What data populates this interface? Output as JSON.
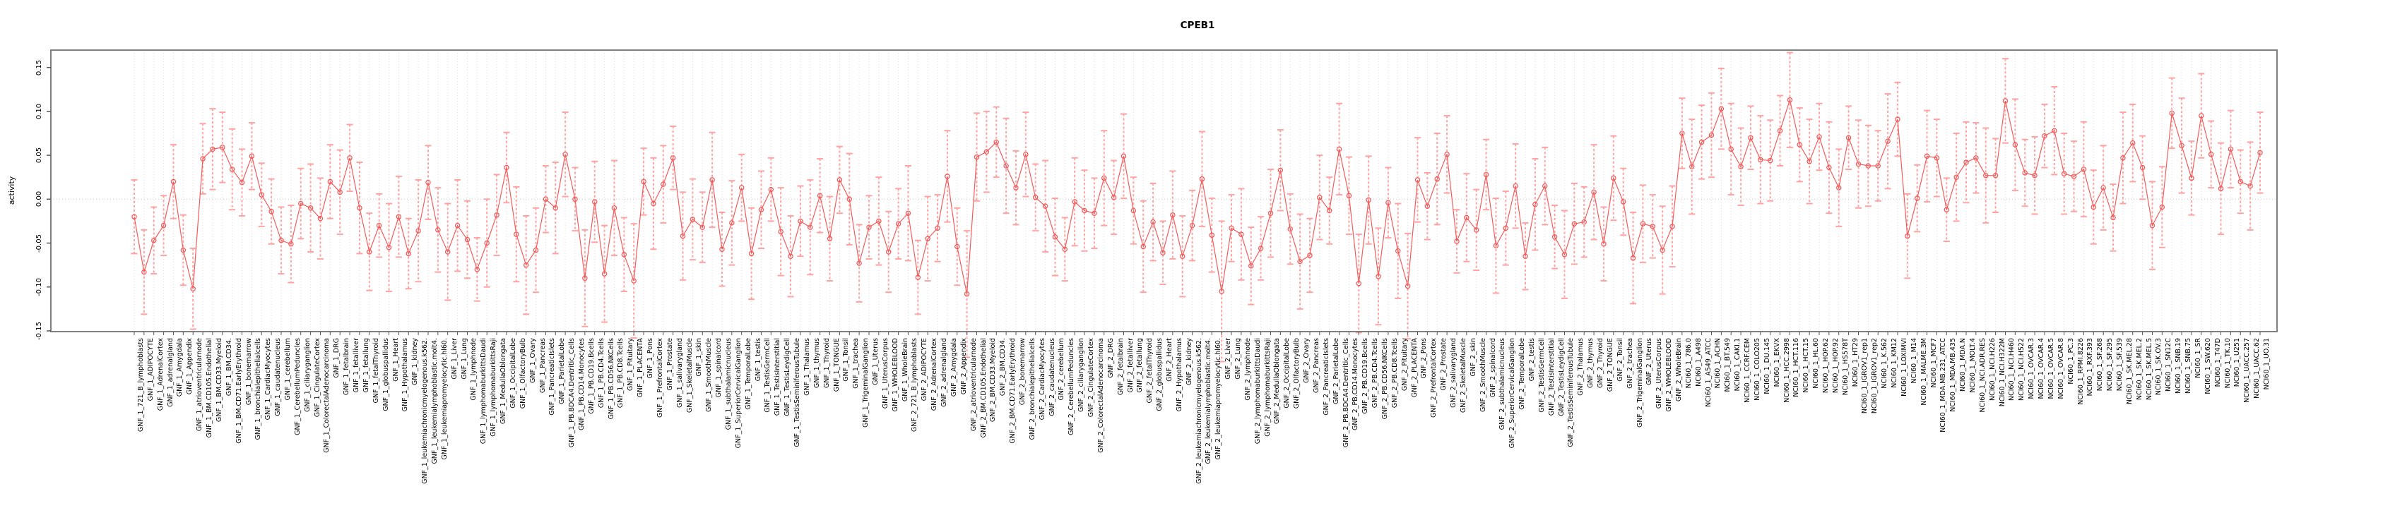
{
  "chart_data": {
    "type": "scatter",
    "subtype": "errorbar-series",
    "title": "CPEB1",
    "xlabel": "",
    "ylabel": "activity",
    "ylim": [
      -0.155,
      0.17
    ],
    "grid": "dotted vertical per category, dotted horizontal at 0",
    "legend": "none",
    "y_tick_labels": [
      "0.15",
      "0.10",
      "0.05",
      "0.00",
      "-0.05",
      "-0.10",
      "-0.15"
    ],
    "y_tick_values": [
      0.15,
      0.1,
      0.05,
      0.0,
      -0.05,
      -0.1,
      -0.15
    ],
    "point_color": "#f25c5c",
    "errorbar_color": "#ffa2a2",
    "grid_color": "#dcdcdc",
    "box_color": "#808080",
    "categories": [
      "GNF_1_721_B_lymphoblasts",
      "GNF_1_ADIPOCYTE",
      "GNF_1_AdrenalCortex",
      "GNF_1_adrenalgland",
      "GNF_1_Amygdala",
      "GNF_1_Appendix",
      "GNF_1_atrioventricularnode",
      "GNF_1_BM.CD105.Endothelial",
      "GNF_1_BM.CD33.Myeloid",
      "GNF_1_BM.CD34.",
      "GNF_1_BM.CD71.EarlyErythroid",
      "GNF_1_bonemarrow",
      "GNF_1_bronchialepithelialcells",
      "GNF_1_CardiacMyocytes",
      "GNF_1_caudatenucleus",
      "GNF_1_cerebellum",
      "GNF_1_CerebellumPeduncles",
      "GNF_1_ciliaryganglion",
      "GNF_1_CingulateCortex",
      "GNF_1_ColorectalAdenocarcinoma",
      "GNF_1_DRG",
      "GNF_1_fetalbrain",
      "GNF_1_fetalliver",
      "GNF_1_fetallung",
      "GNF_1_fetalThyroid",
      "GNF_1_globuspallidus",
      "GNF_1_Heart",
      "GNF_1_Hypothalamus",
      "GNF_1_kidney",
      "GNF_1_leukemiachronicmyelogenous.k562.",
      "GNF_1_leukemialymphoblastic.molt4.",
      "GNF_1_leukemiapromyelocytic.hl60.",
      "GNF_1_Liver",
      "GNF_1_Lung",
      "GNF_1_lymphnode",
      "GNF_1_lymphomaburkittsDaudi",
      "GNF_1_lymphomaburkittsRaji",
      "GNF_1_MedullaOblongata",
      "GNF_1_OccipitalLobe",
      "GNF_1_OlfactoryBulb",
      "GNF_1_Ovary",
      "GNF_1_Pancreas",
      "GNF_1_PancreaticIslets",
      "GNF_1_ParietalLobe",
      "GNF_1_PB.BDCA4.Dentritic_Cells",
      "GNF_1_PB.CD14.Monocytes",
      "GNF_1_PB.CD19.Bcells",
      "GNF_1_PB.CD4.Tcells",
      "GNF_1_PB.CD56.NKCells",
      "GNF_1_PB.CD8.Tcells",
      "GNF_1_Pituitary",
      "GNF_1_PLACENTA",
      "GNF_1_Pons",
      "GNF_1_PrefrontalCortex",
      "GNF_1_Prostate",
      "GNF_1_salivarygland",
      "GNF_1_SkeletalMuscle",
      "GNF_1_skin",
      "GNF_1_SmoothMuscle",
      "GNF_1_spinalcord",
      "GNF_1_subthalamicnucleus",
      "GNF_1_SuperiorCervicalGanglion",
      "GNF_1_TemporalLobe",
      "GNF_1_testis",
      "GNF_1_TestisGermCell",
      "GNF_1_TestisInterstitial",
      "GNF_1_TestisLeydigCell",
      "GNF_1_TestisSeminiferousTubule",
      "GNF_1_Thalamus",
      "GNF_1_thymus",
      "GNF_1_Thyroid",
      "GNF_1_TONGUE",
      "GNF_1_Tonsil",
      "GNF_1_trachea",
      "GNF_1_TrigeminalGanglion",
      "GNF_1_Uterus",
      "GNF_1_UterusCorpus",
      "GNF_1_WHOLEBLOOD",
      "GNF_1_WholeBrain",
      "GNF_2_721_B_lymphoblasts",
      "GNF_2_ADIPOCYTE",
      "GNF_2_AdrenalCortex",
      "GNF_2_adrenalgland",
      "GNF_2_Amygdala",
      "GNF_2_Appendix",
      "GNF_2_atrioventricularnode",
      "GNF_2_BM.CD105.Endothelial",
      "GNF_2_BM.CD33.Myeloid",
      "GNF_2_BM.CD34.",
      "GNF_2_BM.CD71.EarlyErythroid",
      "GNF_2_bonemarrow",
      "GNF_2_bronchialepithelialcells",
      "GNF_2_CardiacMyocytes",
      "GNF_2_caudatenucleus",
      "GNF_2_cerebellum",
      "GNF_2_CerebellumPeduncles",
      "GNF_2_ciliaryganglion",
      "GNF_2_CingulateCortex",
      "GNF_2_ColorectalAdenocarcinoma",
      "GNF_2_DRG",
      "GNF_2_fetalbrain",
      "GNF_2_fetalliver",
      "GNF_2_fetallung",
      "GNF_2_fetalThyroid",
      "GNF_2_globuspallidus",
      "GNF_2_Heart",
      "GNF_2_Hypothalamus",
      "GNF_2_kidney",
      "GNF_2_leukemiachronicmyelogenous.k562.",
      "GNF_2_leukemialymphoblastic.molt4.",
      "GNF_2_leukemiapromyelocytic.hl60.",
      "GNF_2_Liver",
      "GNF_2_Lung",
      "GNF_2_lymphnode",
      "GNF_2_lymphomaburkittsDaudi",
      "GNF_2_lymphomaburkittsRaji",
      "GNF_2_MedullaOblongata",
      "GNF_2_OccipitalLobe",
      "GNF_2_OlfactoryBulb",
      "GNF_2_Ovary",
      "GNF_2_Pancreas",
      "GNF_2_PancreaticIslets",
      "GNF_2_ParietalLobe",
      "GNF_2_PB.BDCA4.Dentritic_Cells",
      "GNF_2_PB.CD14.Monocytes",
      "GNF_2_PB.CD19.Bcells",
      "GNF_2_PB.CD4.Tcells",
      "GNF_2_PB.CD56.NKCells",
      "GNF_2_PB.CD8.Tcells",
      "GNF_2_Pituitary",
      "GNF_2_PLACENTA",
      "GNF_2_Pons",
      "GNF_2_PrefrontalCortex",
      "GNF_2_Prostate",
      "GNF_2_salivarygland",
      "GNF_2_SkeletalMuscle",
      "GNF_2_skin",
      "GNF_2_SmoothMuscle",
      "GNF_2_spinalcord",
      "GNF_2_subthalamicnucleus",
      "GNF_2_SuperiorCervicalGanglion",
      "GNF_2_TemporalLobe",
      "GNF_2_testis",
      "GNF_2_TestisGermCell",
      "GNF_2_TestisInterstitial",
      "GNF_2_TestisLeydigCell",
      "GNF_2_TestisSeminiferousTubule",
      "GNF_2_Thalamus",
      "GNF_2_thymus",
      "GNF_2_Thyroid",
      "GNF_2_TONGUE",
      "GNF_2_Tonsil",
      "GNF_2_trachea",
      "GNF_2_TrigeminalGanglion",
      "GNF_2_Uterus",
      "GNF_2_UterusCorpus",
      "GNF_2_WHOLEBLOOD",
      "GNF_2_WholeBrain",
      "NCI60_1_786.0",
      "NCI60_1_A498",
      "NCI60_1_A549_ATCC",
      "NCI60_1_ACHN",
      "NCI60_1_BT.549",
      "NCI60_1_CAKI.1",
      "NCI60_1_CCRF.CEM",
      "NCI60_1_COLO205",
      "NCI60_1_DU.145",
      "NCI60_1_EKVX",
      "NCI60_1_HCC.2998",
      "NCI60_1_HCT.116",
      "NCI60_1_HCT.15",
      "NCI60_1_HL.60",
      "NCI60_1_HOP.62",
      "NCI60_1_HOP.92",
      "NCI60_1_HS578T",
      "NCI60_1_HT29",
      "NCI60_1_IGROV1_rep1",
      "NCI60_1_IGROV1_rep2",
      "NCI60_1_K.562",
      "NCI60_1_KM12",
      "NCI60_1_LOXIMVI",
      "NCI60_1_M14",
      "NCI60_1_MALME.3M",
      "NCI60_1_MCF7",
      "NCI60_1_MDA.MB.231_ATCC",
      "NCI60_1_MDA.MB.435",
      "NCI60_1_MDA.N",
      "NCI60_1_MOLT.4",
      "NCI60_1_NCI.ADR.RES",
      "NCI60_1_NCI.H226",
      "NCI60_1_NCI.H322M",
      "NCI60_1_NCI.H460",
      "NCI60_1_NCI.H522",
      "NCI60_1_OVCAR.3",
      "NCI60_1_OVCAR.4",
      "NCI60_1_OVCAR.5",
      "NCI60_1_OVCAR.8",
      "NCI60_1_PC.3",
      "NCI60_1_RPMI.8226",
      "NCI60_1_RXF.393",
      "NCI60_1_SF.268",
      "NCI60_1_SF.295",
      "NCI60_1_SF.539",
      "NCI60_1_SK.MEL.28",
      "NCI60_1_SK.MEL.2",
      "NCI60_1_SK.MEL.5",
      "NCI60_1_SK.OV.3",
      "NCI60_1_SN12C",
      "NCI60_1_SNB.19",
      "NCI60_1_SNB.75",
      "NCI60_1_SR",
      "NCI60_1_SW.620",
      "NCI60_1_T47D",
      "NCI60_1_TK.10",
      "NCI60_1_U251",
      "NCI60_1_UACC.257",
      "NCI60_1_UACC.62",
      "NCI60_1_UO.31"
    ],
    "values": [
      -0.02,
      -0.083,
      -0.047,
      -0.03,
      0.02,
      -0.058,
      -0.102,
      0.046,
      0.057,
      0.059,
      0.034,
      0.019,
      0.049,
      0.005,
      -0.014,
      -0.047,
      -0.051,
      -0.005,
      -0.01,
      -0.022,
      0.02,
      0.008,
      0.047,
      -0.01,
      -0.06,
      -0.03,
      -0.055,
      -0.02,
      -0.062,
      -0.036,
      0.019,
      -0.035,
      -0.06,
      -0.03,
      -0.046,
      -0.08,
      -0.05,
      -0.018,
      0.036,
      -0.04,
      -0.075,
      -0.058,
      0.0,
      -0.01,
      0.051,
      0.0,
      -0.09,
      -0.003,
      -0.085,
      -0.01,
      -0.063,
      -0.093,
      0.02,
      -0.005,
      0.017,
      0.047,
      -0.042,
      -0.023,
      -0.032,
      0.022,
      -0.057,
      -0.027,
      0.013,
      -0.062,
      -0.012,
      0.011,
      -0.037,
      -0.065,
      -0.025,
      -0.032,
      0.004,
      -0.045,
      0.022,
      0.0,
      -0.073,
      -0.032,
      -0.025,
      -0.06,
      -0.028,
      -0.016,
      -0.089,
      -0.045,
      -0.033,
      0.026,
      -0.054,
      -0.108,
      0.048,
      0.054,
      0.065,
      0.038,
      0.013,
      0.051,
      0.002,
      -0.008,
      -0.043,
      -0.057,
      -0.003,
      -0.013,
      -0.016,
      0.024,
      0.002,
      0.049,
      -0.013,
      -0.054,
      -0.026,
      -0.061,
      -0.018,
      -0.065,
      -0.03,
      0.023,
      -0.041,
      -0.105,
      -0.033,
      -0.04,
      -0.076,
      -0.056,
      -0.016,
      0.033,
      -0.034,
      -0.071,
      -0.064,
      0.002,
      -0.013,
      0.057,
      0.004,
      -0.096,
      -0.001,
      -0.088,
      -0.004,
      -0.059,
      -0.099,
      0.022,
      -0.008,
      0.023,
      0.051,
      -0.048,
      -0.021,
      -0.035,
      0.028,
      -0.053,
      -0.033,
      0.015,
      -0.065,
      -0.006,
      0.015,
      -0.043,
      -0.063,
      -0.028,
      -0.026,
      0.008,
      -0.051,
      0.024,
      -0.003,
      -0.067,
      -0.028,
      -0.031,
      -0.058,
      -0.031,
      0.075,
      0.037,
      0.065,
      0.073,
      0.103,
      0.057,
      0.037,
      0.07,
      0.045,
      0.044,
      0.078,
      0.113,
      0.062,
      0.043,
      0.071,
      0.036,
      0.013,
      0.07,
      0.04,
      0.038,
      0.038,
      0.066,
      0.091,
      -0.042,
      0.001,
      0.049,
      0.047,
      -0.012,
      0.025,
      0.042,
      0.047,
      0.027,
      0.027,
      0.112,
      0.062,
      0.03,
      0.027,
      0.072,
      0.078,
      0.029,
      0.026,
      0.034,
      -0.009,
      0.013,
      -0.021,
      0.047,
      0.064,
      0.036,
      -0.03,
      -0.009,
      0.098,
      0.061,
      0.024,
      0.095,
      0.051,
      0.012,
      0.057,
      0.02,
      0.015,
      0.053
    ],
    "errors": [
      0.042,
      0.048,
      0.038,
      0.034,
      0.042,
      0.04,
      0.046,
      0.04,
      0.046,
      0.04,
      0.046,
      0.038,
      0.038,
      0.036,
      0.037,
      0.038,
      0.044,
      0.04,
      0.05,
      0.046,
      0.042,
      0.048,
      0.038,
      0.052,
      0.044,
      0.036,
      0.05,
      0.046,
      0.04,
      0.058,
      0.042,
      0.048,
      0.055,
      0.052,
      0.044,
      0.036,
      0.05,
      0.046,
      0.04,
      0.054,
      0.056,
      0.048,
      0.038,
      0.052,
      0.048,
      0.036,
      0.055,
      0.046,
      0.055,
      0.054,
      0.042,
      0.065,
      0.038,
      0.052,
      0.044,
      0.036,
      0.05,
      0.046,
      0.04,
      0.054,
      0.042,
      0.048,
      0.038,
      0.052,
      0.044,
      0.036,
      0.05,
      0.046,
      0.04,
      0.054,
      0.042,
      0.048,
      0.038,
      0.052,
      0.044,
      0.036,
      0.05,
      0.046,
      0.04,
      0.054,
      0.042,
      0.048,
      0.038,
      0.052,
      0.044,
      0.072,
      0.05,
      0.046,
      0.04,
      0.054,
      0.042,
      0.048,
      0.038,
      0.052,
      0.044,
      0.036,
      0.05,
      0.046,
      0.04,
      0.054,
      0.042,
      0.048,
      0.038,
      0.052,
      0.044,
      0.036,
      0.05,
      0.046,
      0.04,
      0.054,
      0.042,
      0.08,
      0.038,
      0.052,
      0.044,
      0.036,
      0.05,
      0.046,
      0.04,
      0.054,
      0.042,
      0.048,
      0.038,
      0.052,
      0.044,
      0.056,
      0.05,
      0.055,
      0.04,
      0.054,
      0.06,
      0.048,
      0.038,
      0.052,
      0.044,
      0.036,
      0.05,
      0.046,
      0.04,
      0.054,
      0.042,
      0.048,
      0.038,
      0.052,
      0.044,
      0.036,
      0.05,
      0.046,
      0.04,
      0.054,
      0.042,
      0.048,
      0.038,
      0.052,
      0.044,
      0.036,
      0.05,
      0.046,
      0.04,
      0.054,
      0.042,
      0.048,
      0.046,
      0.052,
      0.044,
      0.036,
      0.05,
      0.046,
      0.04,
      0.054,
      0.042,
      0.048,
      0.038,
      0.052,
      0.044,
      0.036,
      0.05,
      0.046,
      0.04,
      0.054,
      0.042,
      0.048,
      0.038,
      0.052,
      0.044,
      0.036,
      0.05,
      0.046,
      0.04,
      0.054,
      0.042,
      0.048,
      0.052,
      0.038,
      0.044,
      0.036,
      0.05,
      0.046,
      0.04,
      0.054,
      0.042,
      0.048,
      0.038,
      0.052,
      0.044,
      0.036,
      0.05,
      0.046,
      0.04,
      0.054,
      0.042,
      0.048,
      0.038,
      0.052,
      0.044,
      0.036,
      0.05,
      0.046
    ]
  }
}
